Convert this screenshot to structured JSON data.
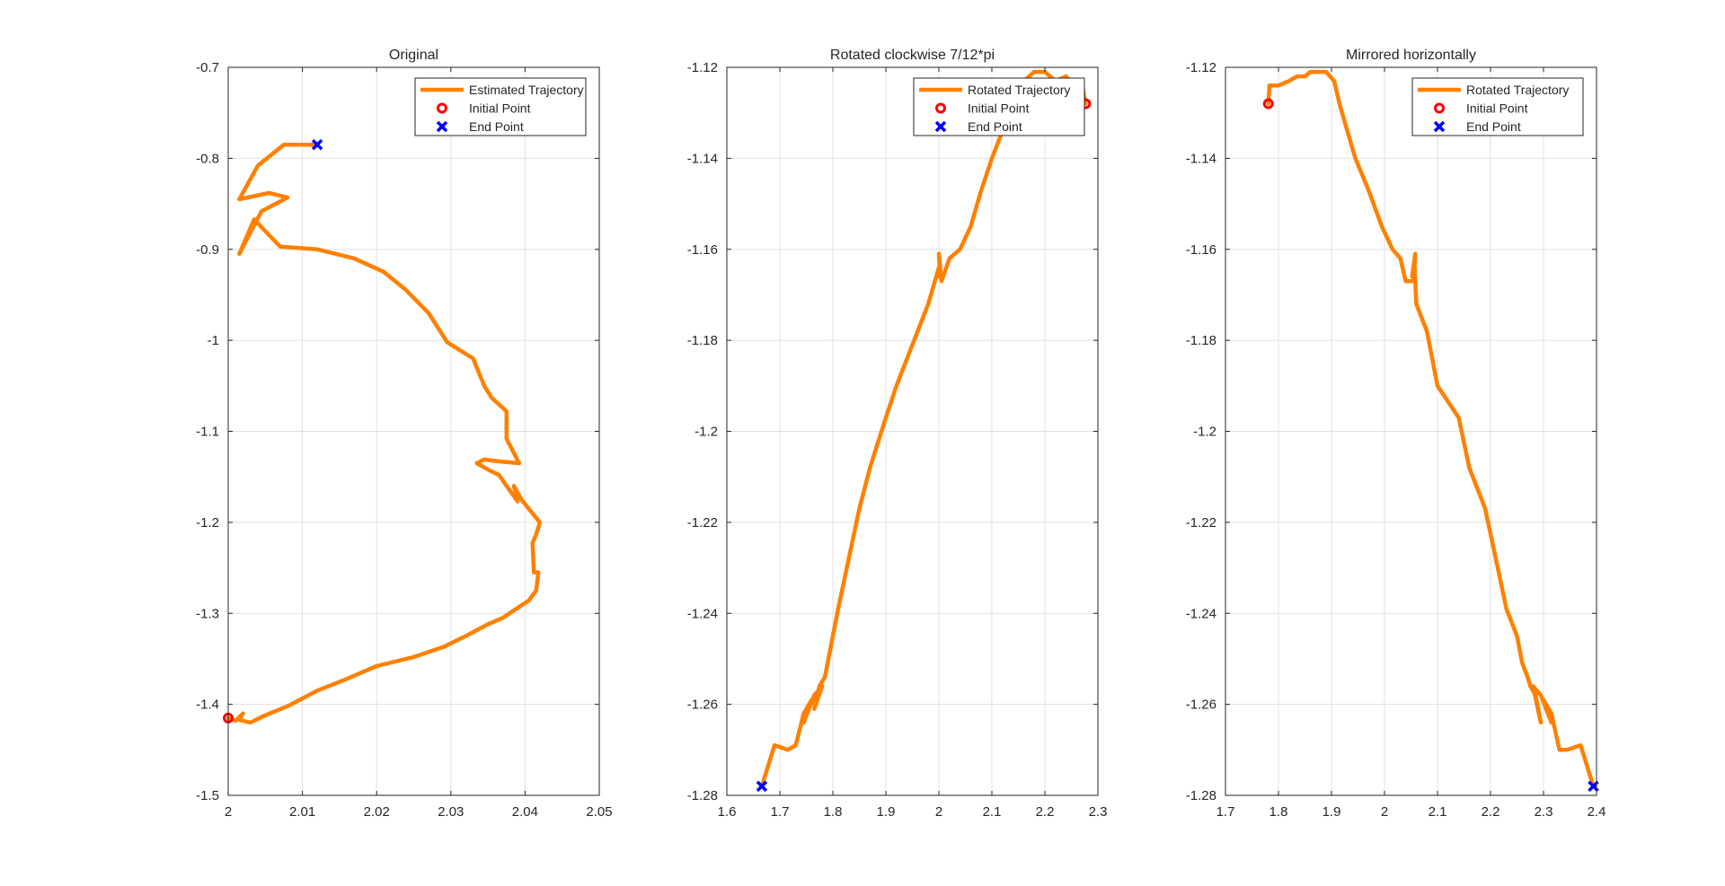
{
  "colors": {
    "trajectory": "#ff8000",
    "initial_point": "#ff0000",
    "end_point": "#0000ff",
    "axes": "#262626",
    "grid": "#e0e0e0",
    "background": "#ffffff"
  },
  "chart_data": [
    {
      "type": "line",
      "title": "Original",
      "xlabel": "",
      "ylabel": "",
      "xlim": [
        2,
        2.05
      ],
      "ylim": [
        -1.5,
        -0.7
      ],
      "xticks": [
        2,
        2.01,
        2.02,
        2.03,
        2.04,
        2.05
      ],
      "yticks": [
        -1.5,
        -1.4,
        -1.3,
        -1.2,
        -1.1,
        -1,
        -0.9,
        -0.8,
        -0.7
      ],
      "xtick_labels": [
        "2",
        "2.01",
        "2.02",
        "2.03",
        "2.04",
        "2.05"
      ],
      "ytick_labels": [
        "-1.5",
        "-1.4",
        "-1.3",
        "-1.2",
        "-1.1",
        "-1",
        "-0.9",
        "-0.8",
        "-0.7"
      ],
      "grid": true,
      "legend_position": "top-right",
      "legend": [
        "Estimated Trajectory",
        "Initial Point",
        "End Point"
      ],
      "series": [
        {
          "name": "Estimated Trajectory",
          "x": [
            2.0,
            2.001,
            2.002,
            2.0015,
            2.003,
            2.005,
            2.008,
            2.012,
            2.016,
            2.02,
            2.025,
            2.029,
            2.032,
            2.035,
            2.037,
            2.039,
            2.0405,
            2.0415,
            2.0418,
            2.0412,
            2.041,
            2.0415,
            2.042,
            2.0408,
            2.0395,
            2.0385,
            2.039,
            2.0375,
            2.0365,
            2.035,
            2.0335,
            2.0345,
            2.0365,
            2.0392,
            2.0375,
            2.0375,
            2.0355,
            2.0345,
            2.033,
            2.0295,
            2.027,
            2.024,
            2.021,
            2.017,
            2.012,
            2.007,
            2.005,
            2.0035,
            2.0015,
            2.0045,
            2.008,
            2.0055,
            2.0015,
            2.004,
            2.0075,
            2.0095,
            2.012
          ],
          "y": [
            -1.415,
            -1.418,
            -1.41,
            -1.417,
            -1.42,
            -1.412,
            -1.402,
            -1.385,
            -1.372,
            -1.358,
            -1.348,
            -1.337,
            -1.325,
            -1.312,
            -1.305,
            -1.294,
            -1.286,
            -1.275,
            -1.255,
            -1.255,
            -1.223,
            -1.213,
            -1.2,
            -1.188,
            -1.175,
            -1.16,
            -1.177,
            -1.16,
            -1.148,
            -1.142,
            -1.135,
            -1.131,
            -1.133,
            -1.135,
            -1.108,
            -1.078,
            -1.063,
            -1.05,
            -1.02,
            -1.002,
            -0.97,
            -0.945,
            -0.925,
            -0.91,
            -0.9,
            -0.897,
            -0.88,
            -0.867,
            -0.905,
            -0.858,
            -0.843,
            -0.838,
            -0.845,
            -0.808,
            -0.785,
            -0.785,
            -0.785
          ]
        }
      ],
      "points": [
        {
          "name": "Initial Point",
          "x": 2.0,
          "y": -1.415
        },
        {
          "name": "End Point",
          "x": 2.012,
          "y": -0.785
        }
      ]
    },
    {
      "type": "line",
      "title": "Rotated clockwise 7/12*pi",
      "xlabel": "",
      "ylabel": "",
      "xlim": [
        1.6,
        2.3
      ],
      "ylim": [
        -1.28,
        -1.12
      ],
      "xticks": [
        1.6,
        1.7,
        1.8,
        1.9,
        2,
        2.1,
        2.2,
        2.3
      ],
      "yticks": [
        -1.28,
        -1.26,
        -1.24,
        -1.22,
        -1.2,
        -1.18,
        -1.16,
        -1.14,
        -1.12
      ],
      "xtick_labels": [
        "1.6",
        "1.7",
        "1.8",
        "1.9",
        "2",
        "2.1",
        "2.2",
        "2.3"
      ],
      "ytick_labels": [
        "-1.28",
        "-1.26",
        "-1.24",
        "-1.22",
        "-1.2",
        "-1.18",
        "-1.16",
        "-1.14",
        "-1.12"
      ],
      "grid": true,
      "legend_position": "top-right",
      "legend": [
        "Rotated Trajectory",
        "Initial Point",
        "End Point"
      ],
      "series": [
        {
          "name": "Rotated Trajectory",
          "x": [
            2.277,
            2.272,
            2.27,
            2.255,
            2.24,
            2.22,
            2.2,
            2.18,
            2.16,
            2.14,
            2.12,
            2.1,
            2.08,
            2.06,
            2.04,
            2.02,
            2.005,
            2.0,
            2.002,
            2.0,
            1.98,
            1.96,
            1.92,
            1.9,
            1.87,
            1.85,
            1.83,
            1.81,
            1.8,
            1.79,
            1.785,
            1.775,
            1.77,
            1.765,
            1.78,
            1.765,
            1.745,
            1.76,
            1.745,
            1.73,
            1.715,
            1.69,
            1.666
          ],
          "y": [
            -1.128,
            -1.125,
            -1.123,
            -1.124,
            -1.122,
            -1.123,
            -1.121,
            -1.121,
            -1.123,
            -1.128,
            -1.134,
            -1.14,
            -1.147,
            -1.155,
            -1.16,
            -1.162,
            -1.167,
            -1.161,
            -1.166,
            -1.164,
            -1.172,
            -1.178,
            -1.19,
            -1.197,
            -1.208,
            -1.217,
            -1.228,
            -1.239,
            -1.245,
            -1.251,
            -1.254,
            -1.256,
            -1.258,
            -1.261,
            -1.256,
            -1.258,
            -1.264,
            -1.259,
            -1.262,
            -1.269,
            -1.27,
            -1.269,
            -1.278
          ]
        }
      ],
      "points": [
        {
          "name": "Initial Point",
          "x": 2.277,
          "y": -1.128
        },
        {
          "name": "End Point",
          "x": 1.666,
          "y": -1.278
        }
      ]
    },
    {
      "type": "line",
      "title": "Mirrored horizontally",
      "xlabel": "",
      "ylabel": "",
      "xlim": [
        1.7,
        2.4
      ],
      "ylim": [
        -1.28,
        -1.12
      ],
      "xticks": [
        1.7,
        1.8,
        1.9,
        2,
        2.1,
        2.2,
        2.3,
        2.4
      ],
      "yticks": [
        -1.28,
        -1.26,
        -1.24,
        -1.22,
        -1.2,
        -1.18,
        -1.16,
        -1.14,
        -1.12
      ],
      "xtick_labels": [
        "1.7",
        "1.8",
        "1.9",
        "2",
        "2.1",
        "2.2",
        "2.3",
        "2.4"
      ],
      "ytick_labels": [
        "-1.28",
        "-1.26",
        "-1.24",
        "-1.22",
        "-1.2",
        "-1.18",
        "-1.16",
        "-1.14",
        "-1.12"
      ],
      "grid": true,
      "legend_position": "top-right",
      "legend": [
        "Rotated Trajectory",
        "Initial Point",
        "End Point"
      ],
      "series": [
        {
          "name": "Rotated Trajectory",
          "x": [
            1.781,
            1.783,
            1.785,
            1.8,
            1.82,
            1.835,
            1.85,
            1.86,
            1.875,
            1.89,
            1.905,
            1.915,
            1.93,
            1.945,
            1.97,
            1.995,
            2.015,
            2.03,
            2.04,
            2.055,
            2.058,
            2.052,
            2.057,
            2.06,
            2.08,
            2.1,
            2.14,
            2.16,
            2.19,
            2.21,
            2.23,
            2.25,
            2.26,
            2.27,
            2.275,
            2.285,
            2.29,
            2.295,
            2.28,
            2.295,
            2.315,
            2.3,
            2.315,
            2.33,
            2.345,
            2.37,
            2.394
          ],
          "y": [
            -1.128,
            -1.124,
            -1.124,
            -1.124,
            -1.123,
            -1.122,
            -1.122,
            -1.121,
            -1.121,
            -1.121,
            -1.123,
            -1.128,
            -1.134,
            -1.14,
            -1.147,
            -1.155,
            -1.16,
            -1.162,
            -1.167,
            -1.167,
            -1.161,
            -1.166,
            -1.164,
            -1.172,
            -1.178,
            -1.19,
            -1.197,
            -1.208,
            -1.217,
            -1.228,
            -1.239,
            -1.245,
            -1.251,
            -1.254,
            -1.256,
            -1.258,
            -1.261,
            -1.264,
            -1.256,
            -1.258,
            -1.264,
            -1.259,
            -1.262,
            -1.27,
            -1.27,
            -1.269,
            -1.278
          ]
        }
      ],
      "points": [
        {
          "name": "Initial Point",
          "x": 1.781,
          "y": -1.128
        },
        {
          "name": "End Point",
          "x": 2.394,
          "y": -1.278
        }
      ]
    }
  ]
}
